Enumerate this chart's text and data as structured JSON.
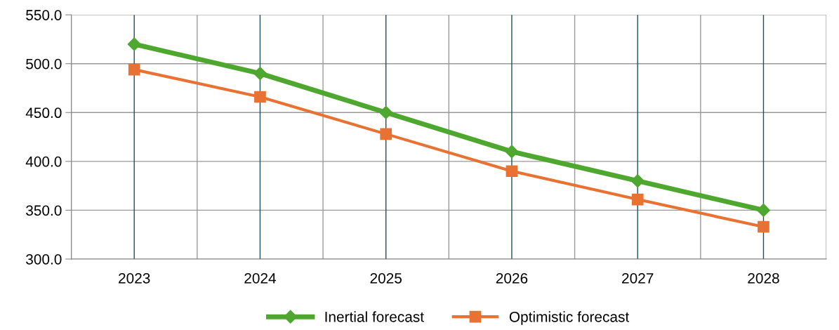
{
  "chart_data": {
    "type": "line",
    "categories": [
      "2023",
      "2024",
      "2025",
      "2026",
      "2027",
      "2028"
    ],
    "series": [
      {
        "name": "Inertial forecast",
        "color": "#4ea72e",
        "marker": "diamond",
        "values": [
          520,
          490,
          450,
          410,
          380,
          350
        ]
      },
      {
        "name": "Optimistic forecast",
        "color": "#e97132",
        "marker": "square",
        "values": [
          494,
          466,
          428,
          390,
          361,
          333
        ]
      }
    ],
    "ylim": [
      300,
      550
    ],
    "yticks": [
      {
        "value": 300,
        "label": "300.0"
      },
      {
        "value": 350,
        "label": "350.0"
      },
      {
        "value": 400,
        "label": "400.0"
      },
      {
        "value": 450,
        "label": "450.0"
      },
      {
        "value": 500,
        "label": "500.0"
      },
      {
        "value": 550,
        "label": "550.0"
      }
    ],
    "grid": true,
    "legend": "bottom"
  }
}
